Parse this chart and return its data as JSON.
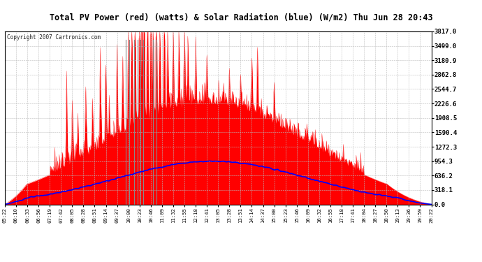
{
  "title": "Total PV Power (red) (watts) & Solar Radiation (blue) (W/m2) Thu Jun 28 20:43",
  "copyright": "Copyright 2007 Cartronics.com",
  "y_ticks": [
    0.0,
    318.1,
    636.2,
    954.3,
    1272.3,
    1590.4,
    1908.5,
    2226.6,
    2544.7,
    2862.8,
    3180.9,
    3499.0,
    3817.0
  ],
  "y_max": 3817.0,
  "y_min": 0.0,
  "x_labels": [
    "05:22",
    "06:10",
    "06:33",
    "06:56",
    "07:19",
    "07:42",
    "08:05",
    "08:28",
    "08:51",
    "09:14",
    "09:37",
    "10:00",
    "10:23",
    "10:46",
    "11:09",
    "11:32",
    "11:55",
    "12:18",
    "12:41",
    "13:05",
    "13:28",
    "13:51",
    "14:14",
    "14:37",
    "15:00",
    "15:23",
    "15:46",
    "16:09",
    "16:32",
    "16:55",
    "17:18",
    "17:41",
    "18:04",
    "18:27",
    "18:50",
    "19:13",
    "19:36",
    "19:59",
    "20:22"
  ],
  "bg_color": "#ffffff",
  "plot_bg_color": "#ffffff",
  "grid_color": "#bbbbbb",
  "title_bg": "#cccccc",
  "red_color": "#ff0000",
  "blue_color": "#0000ff"
}
